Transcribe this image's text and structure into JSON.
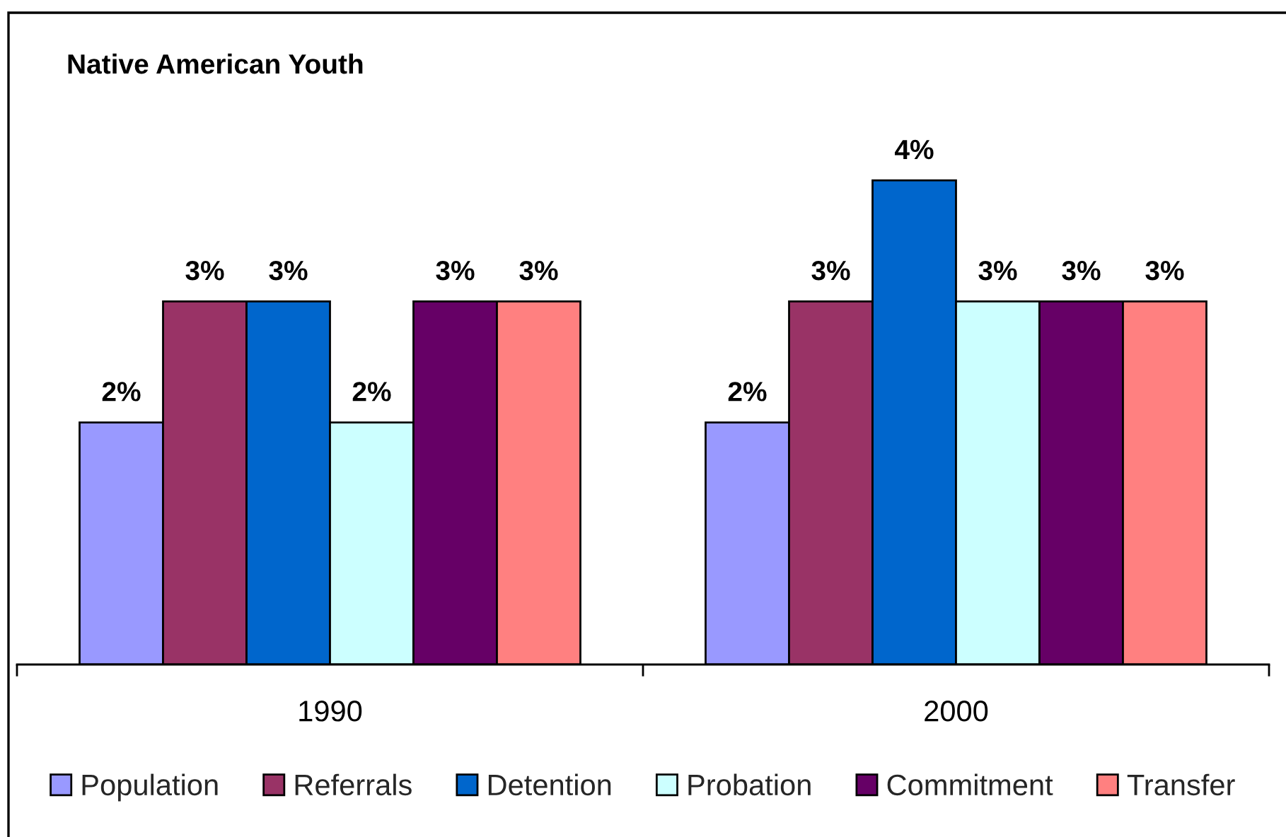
{
  "chart_data": {
    "type": "bar",
    "title": "Native American Youth",
    "categories": [
      "1990",
      "2000"
    ],
    "series": [
      {
        "name": "Population",
        "color": "#9999ff",
        "values": [
          2,
          2
        ],
        "value_labels": [
          "2%",
          "2%"
        ]
      },
      {
        "name": "Referrals",
        "color": "#993366",
        "values": [
          3,
          3
        ],
        "value_labels": [
          "3%",
          "3%"
        ]
      },
      {
        "name": "Detention",
        "color": "#0066cc",
        "values": [
          3,
          4
        ],
        "value_labels": [
          "3%",
          "4%"
        ]
      },
      {
        "name": "Probation",
        "color": "#ccffff",
        "values": [
          2,
          3
        ],
        "value_labels": [
          "2%",
          "3%"
        ]
      },
      {
        "name": "Commitment",
        "color": "#660066",
        "values": [
          3,
          3
        ],
        "value_labels": [
          "3%",
          "3%"
        ]
      },
      {
        "name": "Transfer",
        "color": "#ff8080",
        "values": [
          3,
          3
        ],
        "value_labels": [
          "3%",
          "3%"
        ]
      }
    ],
    "legend": "bottom"
  }
}
